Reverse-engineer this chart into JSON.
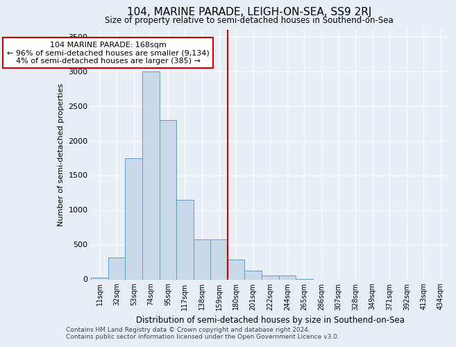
{
  "title": "104, MARINE PARADE, LEIGH-ON-SEA, SS9 2RJ",
  "subtitle": "Size of property relative to semi-detached houses in Southend-on-Sea",
  "xlabel": "Distribution of semi-detached houses by size in Southend-on-Sea",
  "ylabel": "Number of semi-detached properties",
  "categories": [
    "11sqm",
    "32sqm",
    "53sqm",
    "74sqm",
    "95sqm",
    "117sqm",
    "138sqm",
    "159sqm",
    "180sqm",
    "201sqm",
    "222sqm",
    "244sqm",
    "265sqm",
    "286sqm",
    "307sqm",
    "328sqm",
    "349sqm",
    "371sqm",
    "392sqm",
    "413sqm",
    "434sqm"
  ],
  "values": [
    25,
    320,
    1750,
    3000,
    2300,
    1150,
    580,
    580,
    285,
    130,
    60,
    60,
    5,
    0,
    0,
    0,
    0,
    0,
    0,
    0,
    0
  ],
  "bar_color": "#c8d8e8",
  "bar_edge_color": "#6699bb",
  "vline_x": 7.5,
  "vline_color": "#cc0000",
  "annotation_text": "104 MARINE PARADE: 168sqm\n← 96% of semi-detached houses are smaller (9,134)\n4% of semi-detached houses are larger (385) →",
  "annotation_box_color": "white",
  "annotation_box_edge_color": "#cc0000",
  "ylim": [
    0,
    3600
  ],
  "yticks": [
    0,
    500,
    1000,
    1500,
    2000,
    2500,
    3000,
    3500
  ],
  "background_color": "#e8eef6",
  "footer_line1": "Contains HM Land Registry data © Crown copyright and database right 2024.",
  "footer_line2": "Contains public sector information licensed under the Open Government Licence v3.0."
}
